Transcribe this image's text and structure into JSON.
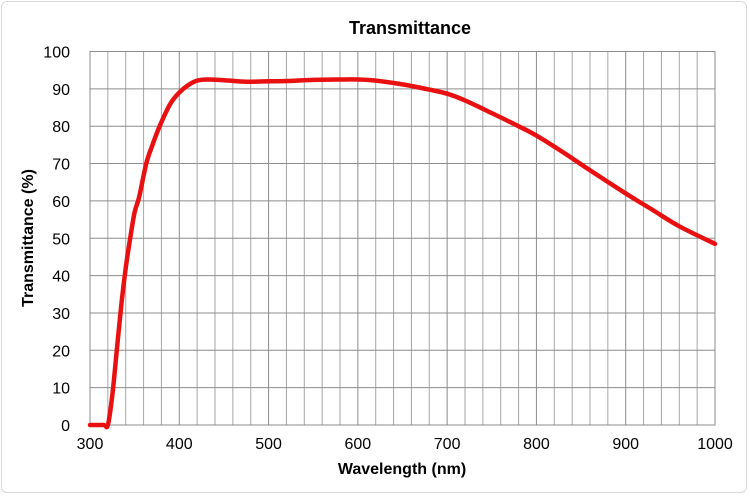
{
  "chart_data": {
    "type": "line",
    "title": "Transmittance",
    "xlabel": "Wavelength (nm)",
    "ylabel": "Transmittance (%)",
    "xlim": [
      300,
      1000
    ],
    "ylim": [
      0,
      100
    ],
    "x_ticks": [
      300,
      400,
      500,
      600,
      700,
      800,
      900,
      1000
    ],
    "y_ticks": [
      0,
      10,
      20,
      30,
      40,
      50,
      60,
      70,
      80,
      90,
      100
    ],
    "x_minor_step": 20,
    "grid": true,
    "legend": "none",
    "line_color": "#e81010",
    "series": [
      {
        "x": [
          300,
          315,
          320,
          325,
          330,
          335,
          340,
          345,
          350,
          355,
          363,
          370,
          378,
          390,
          400,
          410,
          420,
          431,
          450,
          475,
          494,
          520,
          550,
          580,
          600,
          620,
          650,
          680,
          700,
          720,
          750,
          780,
          800,
          830,
          860,
          900,
          930,
          960,
          1000
        ],
        "y": [
          0,
          0,
          0,
          8,
          20,
          32,
          42,
          50,
          57,
          61,
          70,
          75,
          80,
          86,
          89,
          91,
          92.2,
          92.5,
          92.3,
          91.9,
          92,
          92.1,
          92.4,
          92.5,
          92.5,
          92.2,
          91.2,
          89.8,
          88.7,
          86.9,
          83.5,
          80,
          77.5,
          73,
          68.2,
          62,
          57.6,
          53.2,
          48.5
        ]
      }
    ]
  }
}
